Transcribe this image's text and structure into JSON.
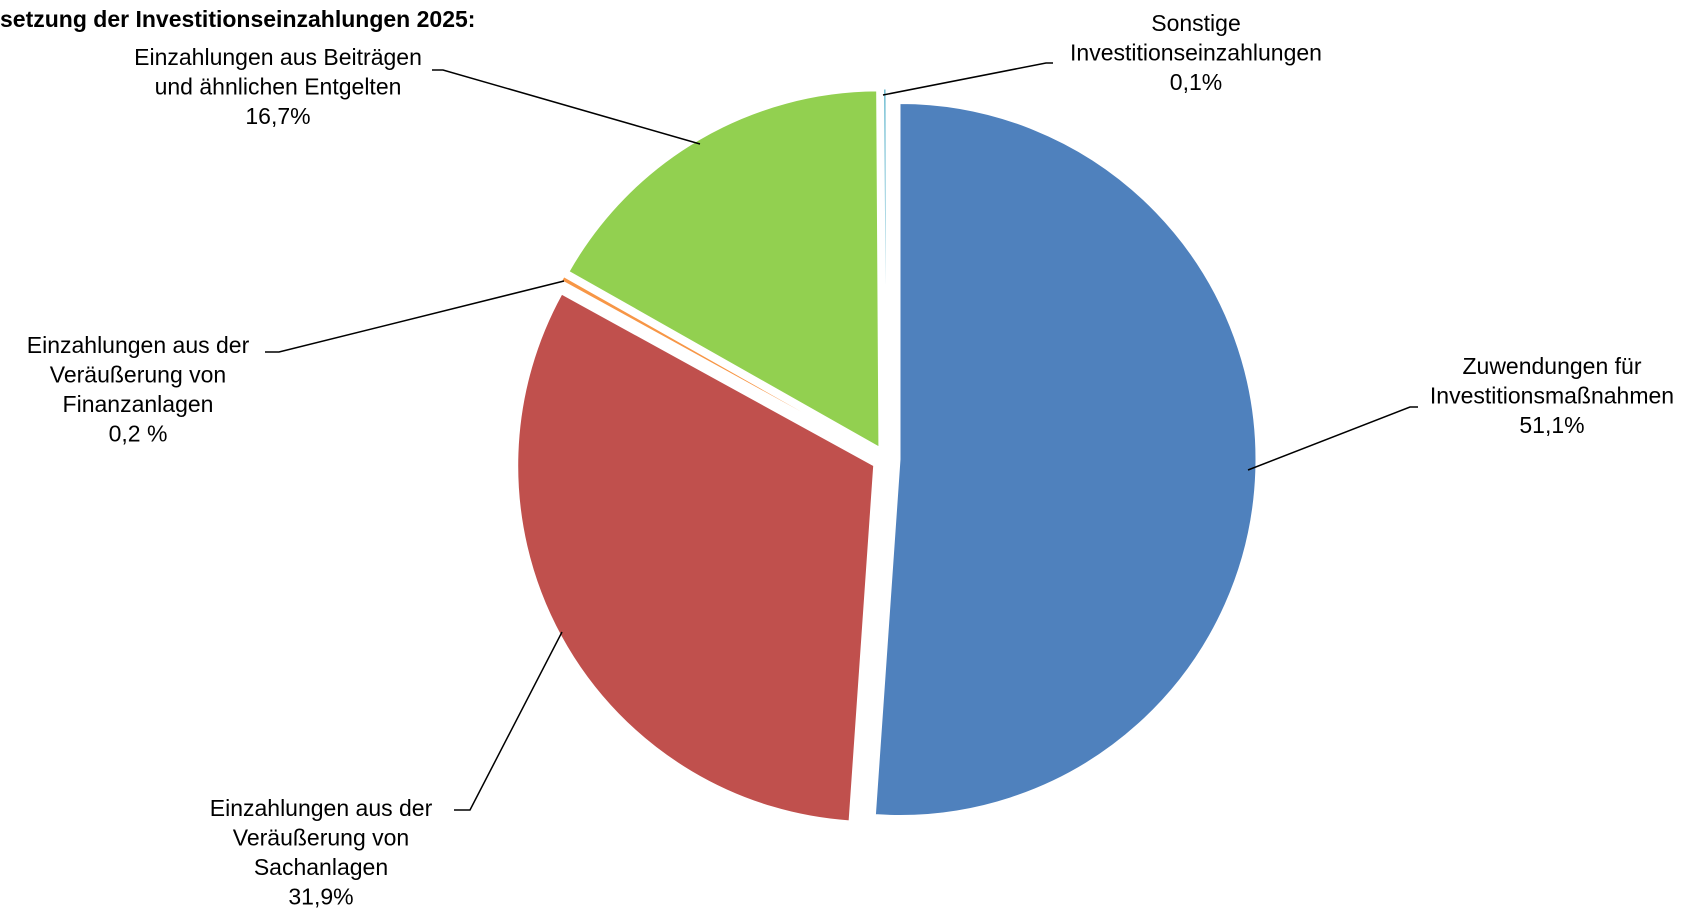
{
  "chart_data": {
    "type": "pie",
    "title": "setzung der Investitionseinzahlungen 2025:",
    "categories": [
      [
        "Zuwendungen  für",
        "Investitionsmaßnahmen"
      ],
      [
        "Einzahlungen  aus der",
        "Veräußerung von",
        "Sachanlagen"
      ],
      [
        "Einzahlungen  aus der",
        "Veräußerung von",
        "Finanzanlagen"
      ],
      [
        "Einzahlungen  aus Beiträgen",
        "und ähnlichen Entgelten"
      ],
      [
        "Sonstige",
        "Investitionseinzahlungen"
      ]
    ],
    "values": [
      51.1,
      31.9,
      0.2,
      16.7,
      0.1
    ],
    "value_labels": [
      "51,1%",
      "31,9%",
      "0,2 %",
      "16,7%",
      "0,1%"
    ],
    "colors": [
      "#4f81bd",
      "#c0504d",
      "#f79646",
      "#92d050",
      "#4bacc6"
    ]
  }
}
